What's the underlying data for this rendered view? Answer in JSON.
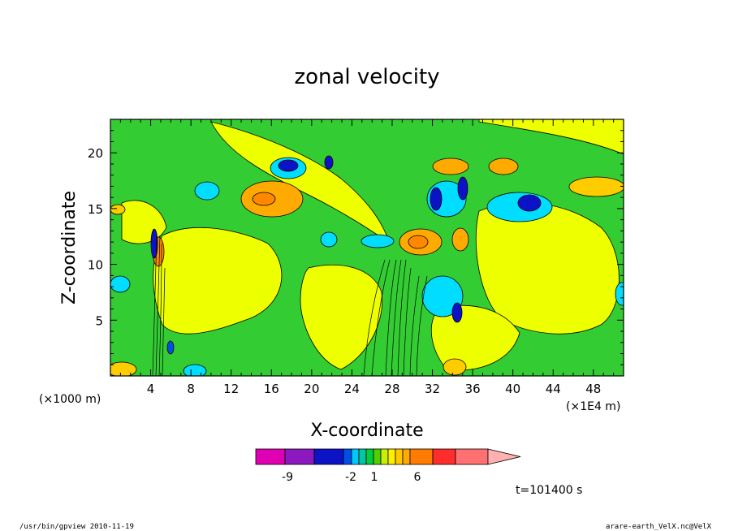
{
  "chart_data": {
    "type": "heatmap",
    "title": "zonal velocity",
    "xlabel": "X-coordinate",
    "ylabel": "Z-coordinate",
    "x_unit": "(×1E4 m)",
    "y_unit": "(×1000 m)",
    "xlim": [
      0,
      51
    ],
    "ylim": [
      0,
      23
    ],
    "x_ticks": [
      "4",
      "8",
      "12",
      "16",
      "20",
      "24",
      "28",
      "32",
      "36",
      "40",
      "44",
      "48"
    ],
    "y_ticks": [
      "5",
      "10",
      "15",
      "20"
    ],
    "colorbar": {
      "colors": [
        "#e000b4",
        "#8c18c0",
        "#0c12c6",
        "#0050e8",
        "#00c8ff",
        "#00c8a0",
        "#00cc40",
        "#4ed000",
        "#c8f000",
        "#ffee00",
        "#ffc800",
        "#ffaa00",
        "#ff7c00",
        "#ff2c2c",
        "#ff7070",
        "#ffb0b0"
      ],
      "labels": [
        "-9",
        "-2",
        "1",
        "6"
      ]
    },
    "time_label": "t=101400 s",
    "footer_left": "/usr/bin/gpview   2010-11-19",
    "footer_right": "arare-earth_VelX.nc@VelX",
    "features": [
      {
        "kind": "positive",
        "x": 16.5,
        "z": 15.8,
        "value": 4
      },
      {
        "kind": "positive",
        "x": 31,
        "z": 11.8,
        "value": 4
      },
      {
        "kind": "positive",
        "x": 4.6,
        "z": 10.5,
        "value": 5
      },
      {
        "kind": "negative",
        "x": 17.5,
        "z": 19.5,
        "value": -3
      },
      {
        "kind": "negative",
        "x": 41,
        "z": 15.5,
        "value": -3
      },
      {
        "kind": "negative",
        "x": 34.5,
        "z": 6,
        "value": -3
      },
      {
        "kind": "negative",
        "x": 33,
        "z": 16,
        "value": -3
      }
    ]
  }
}
